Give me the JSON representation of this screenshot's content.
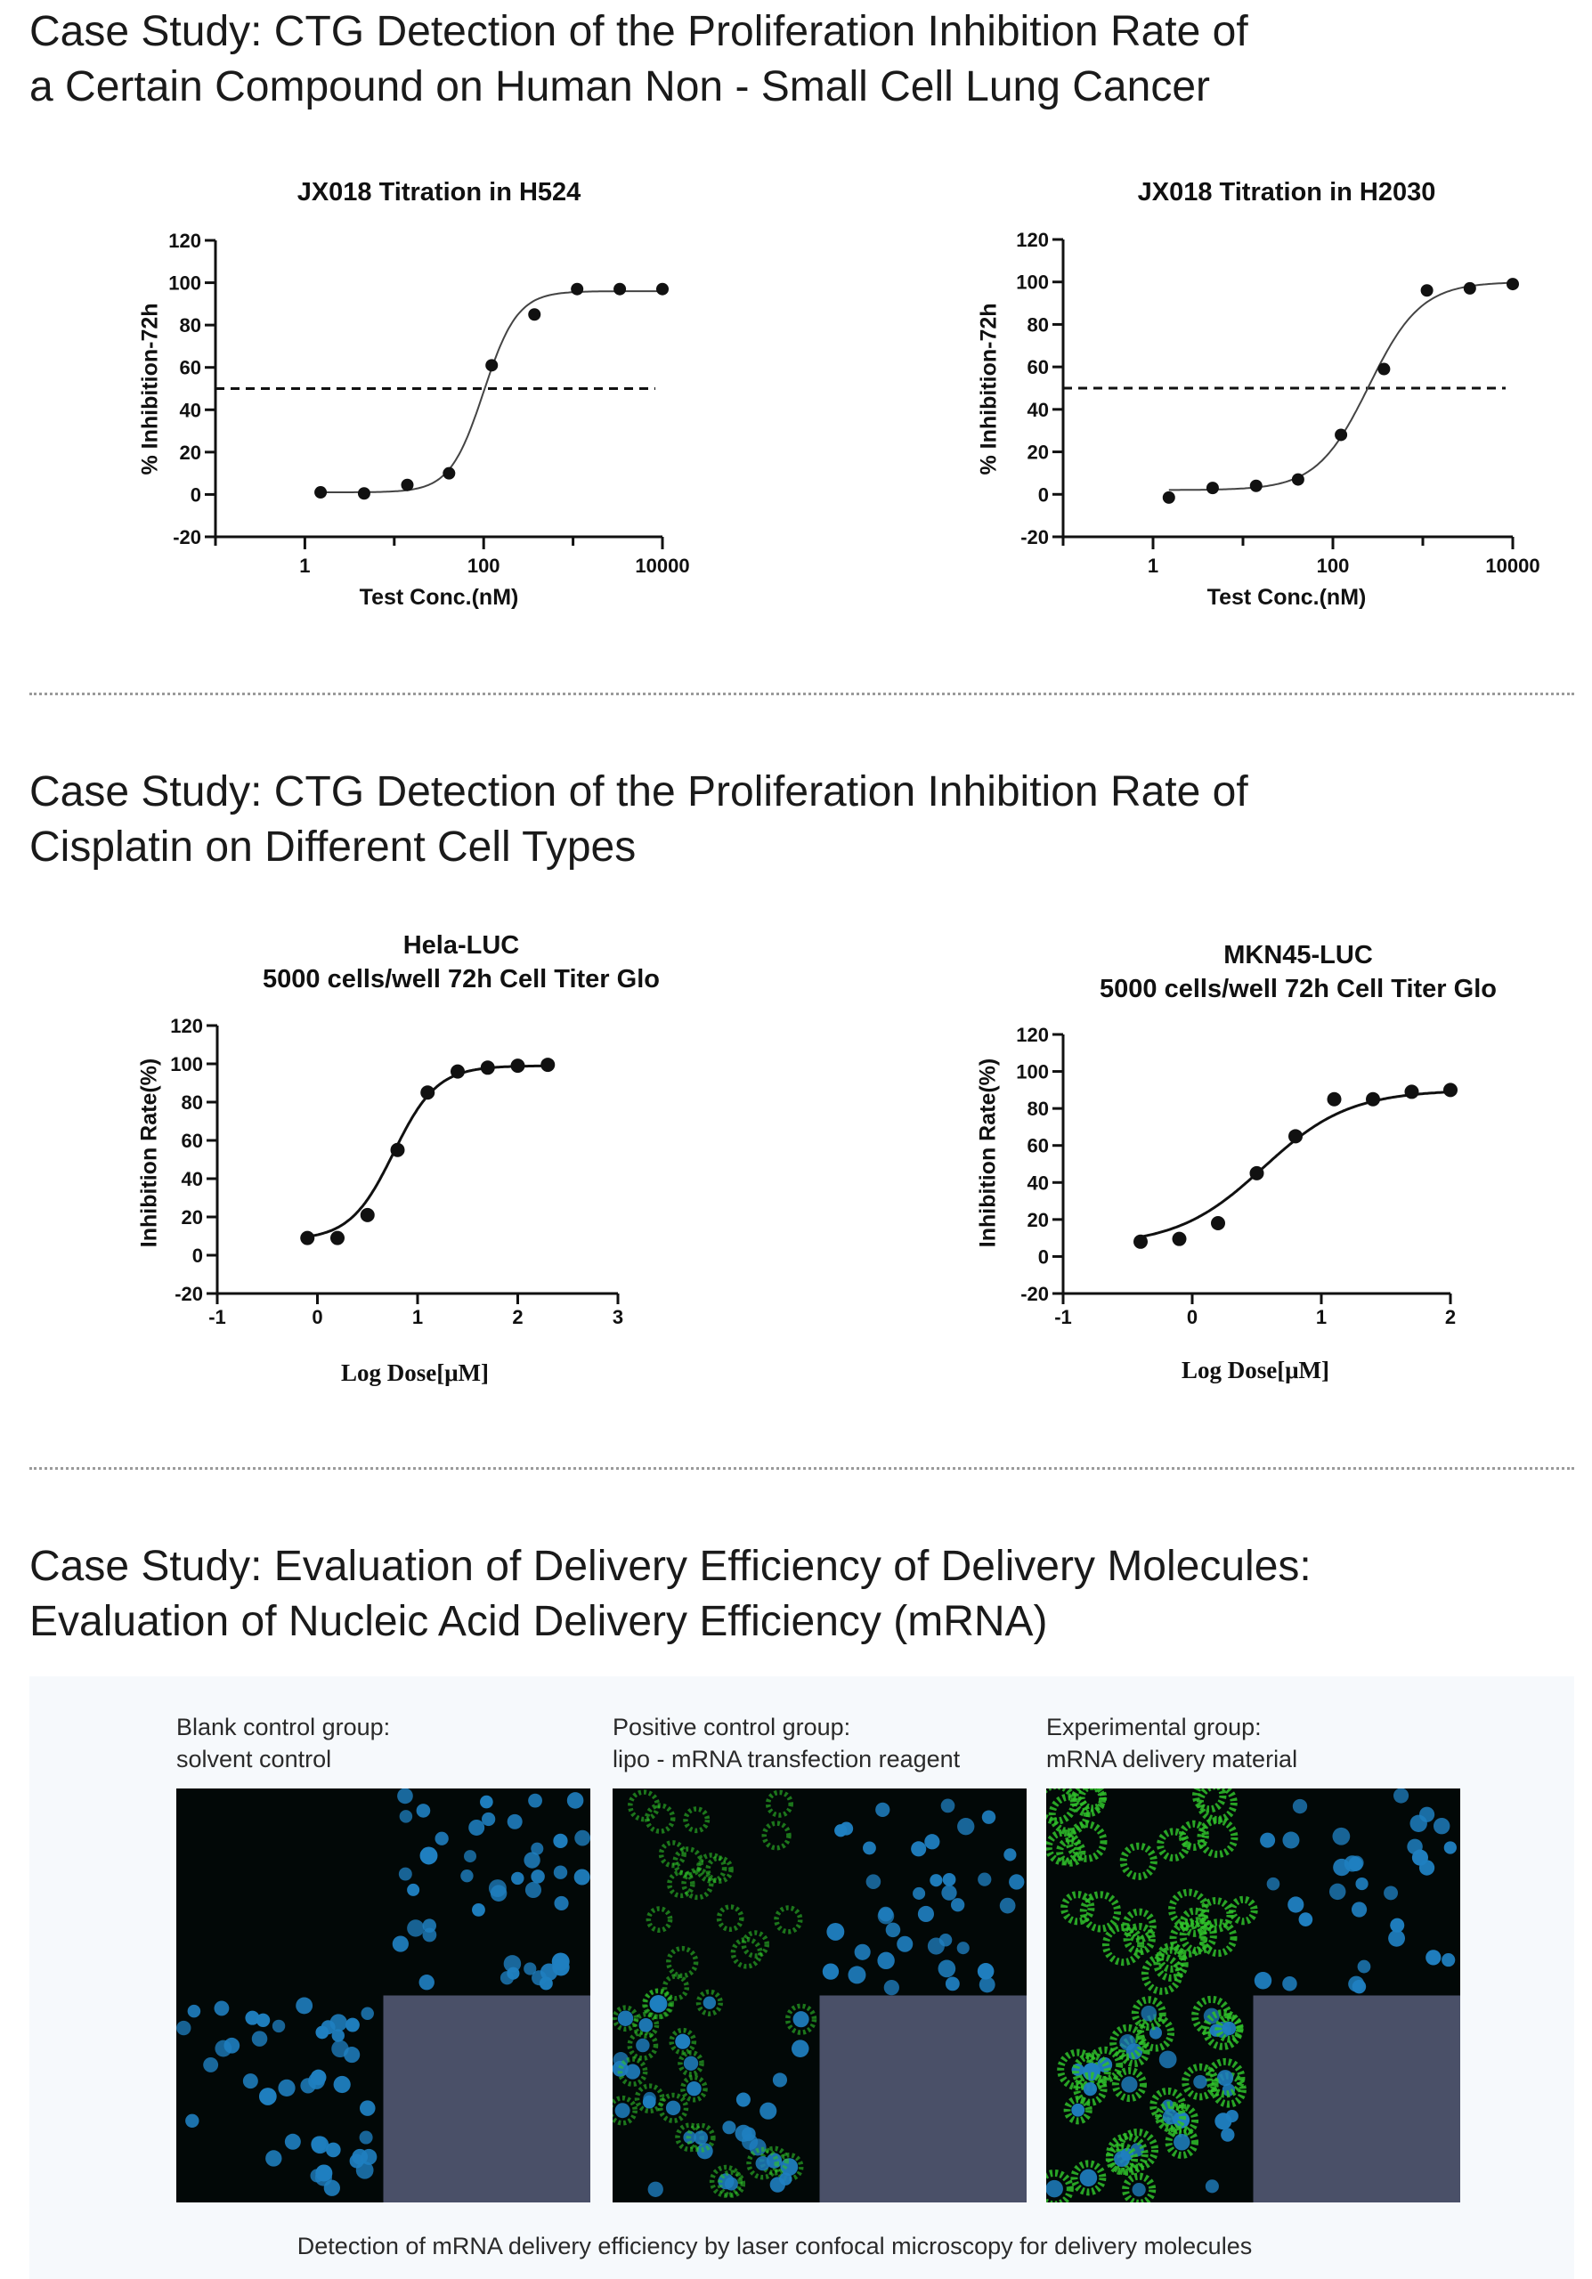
{
  "sections": [
    {
      "title_lines": [
        "Case Study: CTG Detection of the Proliferation Inhibition Rate of",
        "a Certain Compound on Human Non - Small Cell Lung Cancer"
      ]
    },
    {
      "title_lines": [
        "Case Study: CTG Detection of the Proliferation Inhibition Rate of",
        "Cisplatin on Different Cell Types"
      ]
    },
    {
      "title_lines": [
        "Case Study: Evaluation of Delivery Efficiency of Delivery Molecules:",
        "Evaluation of Nucleic Acid Delivery Efficiency (mRNA)"
      ]
    }
  ],
  "chart_data": [
    {
      "type": "scatter",
      "title": "JX018 Titration in H524",
      "xlabel": "Test Conc.(nM)",
      "ylabel": "% Inhibition-72h",
      "xscale": "log10",
      "xlim": [
        0.1,
        10000
      ],
      "ylim": [
        -20,
        120
      ],
      "xticks": [
        1,
        100,
        10000
      ],
      "xtick_labels": [
        "1",
        "100",
        "10000"
      ],
      "yticks": [
        -20,
        0,
        20,
        40,
        60,
        80,
        100,
        120
      ],
      "ytick_labels": [
        "-20",
        "0",
        "20",
        "40",
        "60",
        "80",
        "100",
        "120"
      ],
      "x": [
        1.5,
        4.6,
        14,
        41,
        123,
        370,
        1111,
        3333,
        10000
      ],
      "y": [
        1,
        0.5,
        4.5,
        10,
        61,
        85,
        97,
        97,
        97
      ],
      "fit": {
        "bottom": 1,
        "top": 96,
        "log_ec50": 2.0,
        "hill": 2.3
      },
      "reference_line": 50
    },
    {
      "type": "scatter",
      "title": "JX018 Titration in H2030",
      "xlabel": "Test Conc.(nM)",
      "ylabel": "% Inhibition-72h",
      "xscale": "log10",
      "xlim": [
        0.1,
        10000
      ],
      "ylim": [
        -20,
        120
      ],
      "xticks": [
        1,
        100,
        10000
      ],
      "xtick_labels": [
        "1",
        "100",
        "10000"
      ],
      "yticks": [
        -20,
        0,
        20,
        40,
        60,
        80,
        100,
        120
      ],
      "ytick_labels": [
        "-20",
        "0",
        "20",
        "40",
        "60",
        "80",
        "100",
        "120"
      ],
      "x": [
        1.5,
        4.6,
        14,
        41,
        123,
        370,
        1111,
        3333,
        10000
      ],
      "y": [
        -1.5,
        3,
        4,
        7,
        28,
        59,
        96,
        97,
        99
      ],
      "fit": {
        "bottom": 2,
        "top": 100,
        "log_ec50": 2.4,
        "hill": 1.5
      },
      "reference_line": 50
    },
    {
      "type": "scatter",
      "title": "Hela-LUC",
      "subtitle": "5000 cells/well 72h Cell Titer Glo",
      "xlabel": "Log Dose[μM]",
      "ylabel": "Inhibition Rate(%)",
      "xlim": [
        -1,
        3
      ],
      "ylim": [
        -20,
        120
      ],
      "xticks": [
        -1,
        0,
        1,
        2,
        3
      ],
      "xtick_labels": [
        "-1",
        "0",
        "1",
        "2",
        "3"
      ],
      "yticks": [
        -20,
        0,
        20,
        40,
        60,
        80,
        100,
        120
      ],
      "ytick_labels": [
        "-20",
        "0",
        "20",
        "40",
        "60",
        "80",
        "100",
        "120"
      ],
      "x": [
        -0.1,
        0.2,
        0.5,
        0.8,
        1.1,
        1.4,
        1.7,
        2.0,
        2.3
      ],
      "y": [
        9,
        9,
        21,
        55,
        85,
        96,
        98,
        99,
        99.5
      ],
      "fit": {
        "bottom": 8,
        "top": 99,
        "log_ec50": 0.76,
        "hill": 2.0
      }
    },
    {
      "type": "scatter",
      "title": "MKN45-LUC",
      "subtitle": "5000 cells/well 72h Cell Titer Glo",
      "xlabel": "Log Dose[μM]",
      "ylabel": "Inhibition Rate(%)",
      "xlim": [
        -1,
        2
      ],
      "ylim": [
        -20,
        120
      ],
      "xticks": [
        -1,
        0,
        1,
        2
      ],
      "xtick_labels": [
        "-1",
        "0",
        "1",
        "2"
      ],
      "yticks": [
        -20,
        0,
        20,
        40,
        60,
        80,
        100,
        120
      ],
      "ytick_labels": [
        "-20",
        "0",
        "20",
        "40",
        "60",
        "80",
        "100",
        "120"
      ],
      "x": [
        -0.4,
        -0.1,
        0.2,
        0.5,
        0.8,
        1.1,
        1.4,
        1.7,
        2.0
      ],
      "y": [
        8,
        9.5,
        18,
        45,
        65,
        85,
        85,
        89,
        90
      ],
      "fit": {
        "bottom": 6,
        "top": 90,
        "log_ec50": 0.55,
        "hill": 1.3
      }
    }
  ],
  "microscopy": {
    "groups": [
      {
        "label_lines": [
          "Blank control group:",
          "solvent control"
        ],
        "green_level": 0
      },
      {
        "label_lines": [
          "Positive control group:",
          "lipo - mRNA transfection reagent"
        ],
        "green_level": 0.5
      },
      {
        "label_lines": [
          "Experimental group:",
          "mRNA delivery material"
        ],
        "green_level": 1
      }
    ],
    "caption": "Detection of mRNA delivery efficiency by laser confocal microscopy for delivery molecules",
    "colors": {
      "nucleus": "#1f7fc0",
      "signal": "#2fbf2a",
      "empty_quadrant": "#4a5068"
    }
  }
}
